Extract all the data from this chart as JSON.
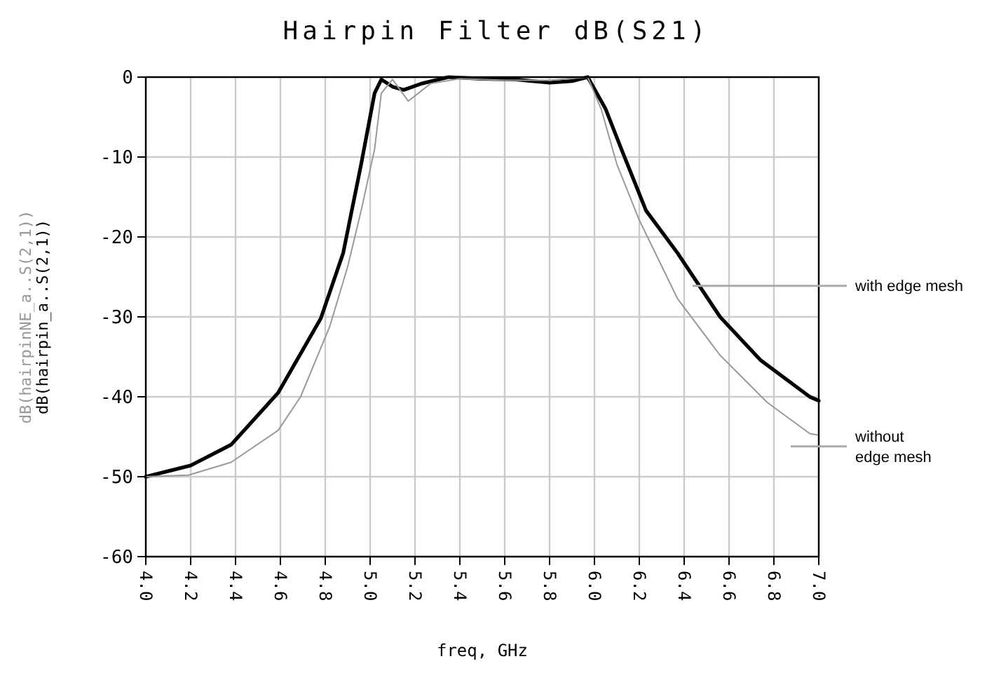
{
  "chart_data": {
    "type": "line",
    "title": "Hairpin Filter dB(S21)",
    "xlabel": "freq, GHz",
    "ylabel": "dB(hairpin_a..S(2,1))",
    "annotations": [
      "dB(hairpinNE_a..S(2,1))"
    ],
    "xlim": [
      4,
      7
    ],
    "ylim": [
      -60,
      0
    ],
    "xticks": [
      {
        "value": 4,
        "label": "4.0"
      },
      {
        "value": 4.2,
        "label": "4.2"
      },
      {
        "value": 4.4,
        "label": "4.4"
      },
      {
        "value": 4.6,
        "label": "4.6"
      },
      {
        "value": 4.8,
        "label": "4.8"
      },
      {
        "value": 5,
        "label": "5.0"
      },
      {
        "value": 5.2,
        "label": "5.2"
      },
      {
        "value": 5.4,
        "label": "5.4"
      },
      {
        "value": 5.6,
        "label": "5.6"
      },
      {
        "value": 5.8,
        "label": "5.8"
      },
      {
        "value": 6,
        "label": "6.0"
      },
      {
        "value": 6.2,
        "label": "6.2"
      },
      {
        "value": 6.4,
        "label": "6.4"
      },
      {
        "value": 6.6,
        "label": "6.6"
      },
      {
        "value": 6.8,
        "label": "6.8"
      },
      {
        "value": 7,
        "label": "7.0"
      }
    ],
    "yticks": [
      0,
      -10,
      -20,
      -30,
      -40,
      -50,
      -60
    ],
    "grid": true,
    "legend": "right",
    "line_style": "solid",
    "marker": "none",
    "series": [
      {
        "name": "with edge mesh",
        "color": "#000000",
        "x": [
          4.0,
          4.2,
          4.38,
          4.59,
          4.78,
          4.88,
          4.96,
          5.02,
          5.05,
          5.1,
          5.15,
          5.23,
          5.35,
          5.5,
          5.65,
          5.8,
          5.9,
          5.97,
          6.05,
          6.12,
          6.23,
          6.37,
          6.56,
          6.74,
          6.96,
          7.0
        ],
        "values": [
          -50,
          -48.6,
          -46,
          -39.5,
          -30.2,
          -22,
          -10.9,
          -2,
          -0.3,
          -1.2,
          -1.6,
          -0.8,
          0,
          -0.2,
          -0.3,
          -0.7,
          -0.5,
          0,
          -4,
          -9,
          -16.7,
          -22,
          -30,
          -35.4,
          -40,
          -40.5
        ]
      },
      {
        "name": "without edge mesh",
        "color": "#999999",
        "x": [
          4.0,
          4.19,
          4.38,
          4.59,
          4.69,
          4.82,
          4.9,
          4.96,
          5.02,
          5.05,
          5.1,
          5.17,
          5.27,
          5.4,
          5.6,
          5.8,
          5.97,
          6.03,
          6.1,
          6.2,
          6.37,
          6.56,
          6.77,
          6.96,
          7.0
        ],
        "values": [
          -50,
          -49.8,
          -48.2,
          -44.2,
          -40,
          -31.2,
          -23.7,
          -16.7,
          -9,
          -2,
          -0.3,
          -3,
          -0.8,
          -0.2,
          -0.4,
          -0.4,
          0,
          -4,
          -10.9,
          -17.9,
          -27.7,
          -34.8,
          -40.7,
          -44.6,
          -44.8
        ]
      }
    ]
  }
}
